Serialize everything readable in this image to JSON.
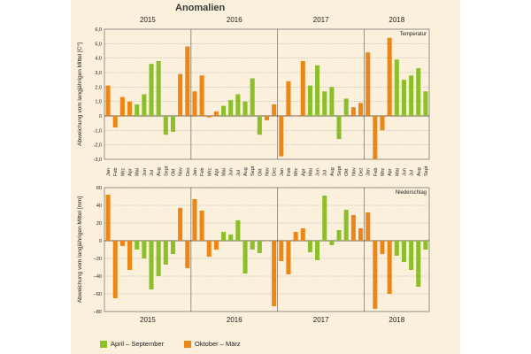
{
  "title": "Anomalien",
  "colors": {
    "growing": "#8cbf2b",
    "dormant": "#ec8616",
    "background": "#faf0dc",
    "grid": "#555555"
  },
  "legend": [
    {
      "label": "April – September",
      "color": "#8cbf2b"
    },
    {
      "label": "Oktober – März",
      "color": "#ec8616"
    }
  ],
  "years_top": [
    "2015",
    "2016",
    "2017",
    "2018"
  ],
  "years_bottom": [
    "2015",
    "2016",
    "2017",
    "2018"
  ],
  "months": [
    "Jan",
    "Feb",
    "Mrz",
    "Apr",
    "Mai",
    "Jun",
    "Jul",
    "Aug",
    "Sept",
    "Okt",
    "Nov",
    "Dez",
    "Jan",
    "Feb",
    "Mrz",
    "Apr",
    "Mai",
    "Jun",
    "Jul",
    "Aug",
    "Sept",
    "Okt",
    "Nov",
    "Dez",
    "Jan",
    "Feb",
    "Mrz",
    "Apr",
    "Mai",
    "Jun",
    "Jul",
    "Aug",
    "Sept",
    "Okt",
    "Nov",
    "Dez",
    "Jan",
    "Feb",
    "Mrz",
    "Apr",
    "Mai",
    "Jun",
    "Jul",
    "Aug",
    "Sept"
  ],
  "chart_data": [
    {
      "type": "bar",
      "panel_label": "Temperatur",
      "ylabel": "Abweichung vom langjährigen Mittel [C°]",
      "ylim": [
        -3,
        6
      ],
      "yticks": [
        "6,0",
        "5,0",
        "4,0",
        "3,0",
        "2,0",
        "1,0",
        "0",
        "-1,0",
        "-2,0",
        "-3,0"
      ],
      "values": [
        2.1,
        -0.8,
        1.3,
        1.0,
        0.8,
        1.5,
        3.6,
        3.8,
        -1.3,
        -1.1,
        2.9,
        4.8,
        1.7,
        2.8,
        -0.1,
        0.3,
        0.7,
        1.1,
        1.5,
        1.0,
        2.6,
        -1.3,
        -0.3,
        0.8,
        -2.8,
        2.4,
        0.0,
        3.8,
        2.1,
        3.5,
        1.7,
        2.0,
        -1.6,
        1.2,
        0.6,
        0.9,
        4.4,
        -3.0,
        -1.0,
        5.4,
        3.9,
        2.5,
        2.8,
        3.3,
        1.7
      ]
    },
    {
      "type": "bar",
      "panel_label": "Niederschlag",
      "ylabel": "Abweichung vom langjährigen Mittel [mm]",
      "ylim": [
        -80,
        60
      ],
      "yticks": [
        "60",
        "40",
        "20",
        "0",
        "−20",
        "−40",
        "−60",
        "−80"
      ],
      "values": [
        52,
        -65,
        -6,
        -33,
        -10,
        -20,
        -55,
        -40,
        -27,
        -15,
        37,
        -31,
        47,
        34,
        -18,
        -10,
        10,
        7,
        23,
        -37,
        -10,
        -14,
        0,
        -74,
        -23,
        -38,
        10,
        14,
        -13,
        -22,
        51,
        -5,
        12,
        35,
        29,
        14,
        32,
        -77,
        -15,
        -60,
        -17,
        -24,
        -33,
        -52,
        -10
      ]
    }
  ]
}
